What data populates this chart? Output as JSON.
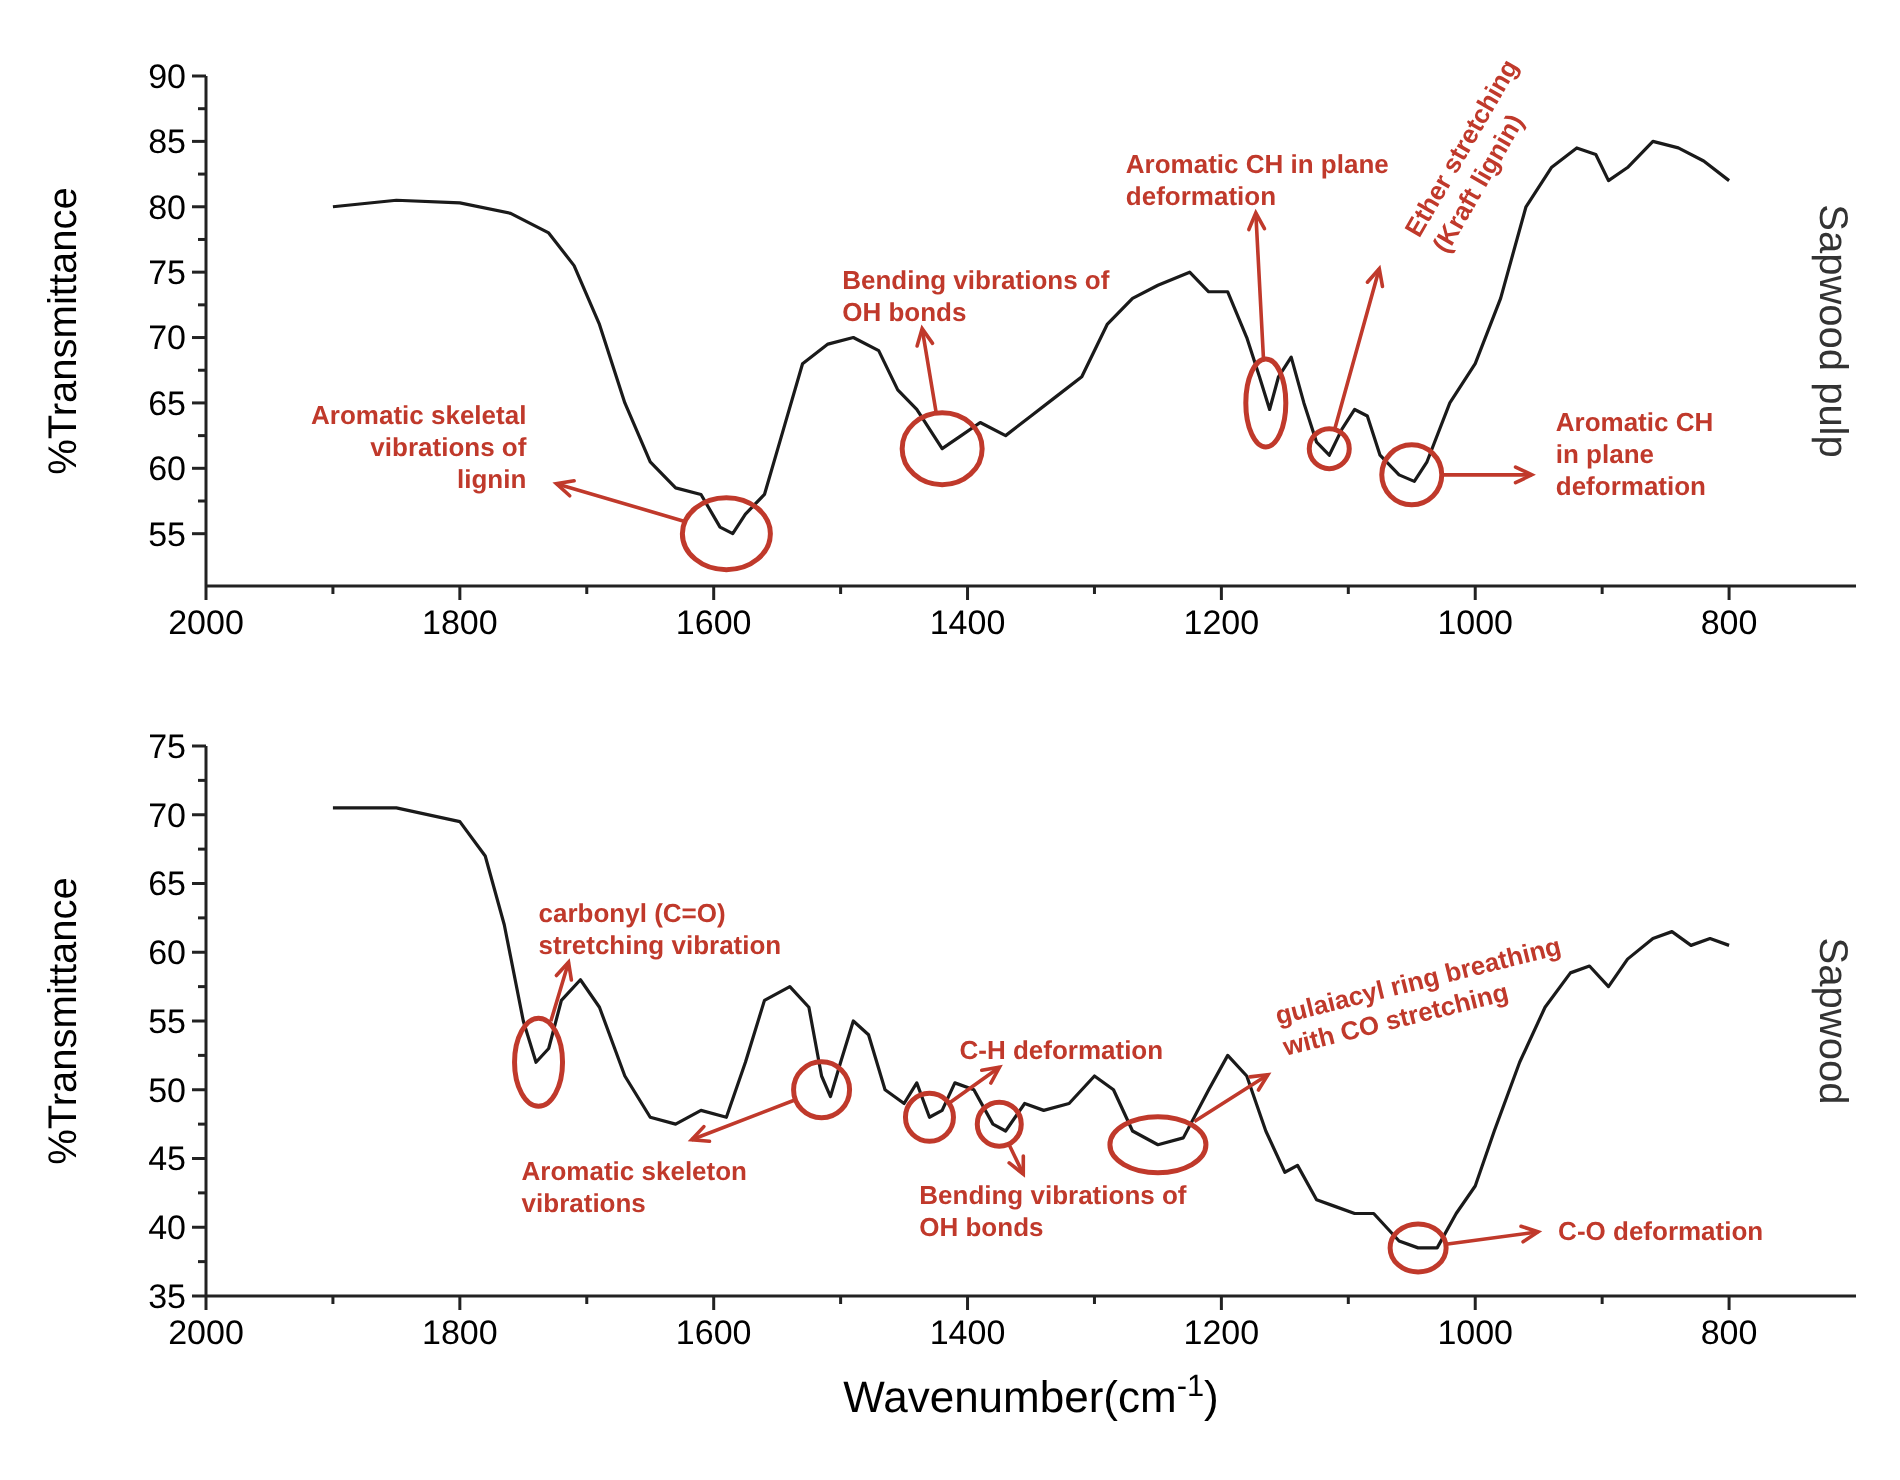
{
  "chart_data": [
    {
      "type": "line",
      "title": "Sapwood pulp",
      "ylabel": "%Transmittance",
      "xlim": [
        2000,
        700
      ],
      "ylim": [
        51,
        90
      ],
      "xticks": [
        2000,
        {
          "value": 1900,
          "label": null
        },
        1800,
        {
          "value": 1700,
          "label": null
        },
        1600,
        {
          "value": 1500,
          "label": null
        },
        1400,
        {
          "value": 1300,
          "label": null
        },
        1200,
        {
          "value": 1100,
          "label": null
        },
        1000,
        {
          "value": 900,
          "label": null
        },
        800
      ],
      "yticks": [
        55,
        {
          "value": 57.5,
          "label": null
        },
        60,
        {
          "value": 62.5,
          "label": null
        },
        65,
        {
          "value": 67.5,
          "label": null
        },
        70,
        {
          "value": 72.5,
          "label": null
        },
        75,
        {
          "value": 77.5,
          "label": null
        },
        80,
        {
          "value": 82.5,
          "label": null
        },
        85,
        {
          "value": 87.5,
          "label": null
        },
        90
      ],
      "grid": false,
      "marker": "none",
      "line_style": "solid",
      "series": [
        {
          "color": "#1a1a1a",
          "x": [
            1900,
            1850,
            1800,
            1760,
            1730,
            1710,
            1690,
            1670,
            1650,
            1630,
            1610,
            1595,
            1585,
            1575,
            1560,
            1545,
            1530,
            1510,
            1490,
            1470,
            1455,
            1440,
            1420,
            1405,
            1390,
            1370,
            1350,
            1330,
            1310,
            1290,
            1270,
            1250,
            1225,
            1210,
            1195,
            1180,
            1170,
            1162,
            1155,
            1145,
            1135,
            1125,
            1115,
            1105,
            1095,
            1085,
            1075,
            1060,
            1048,
            1038,
            1020,
            1000,
            980,
            960,
            940,
            920,
            905,
            895,
            880,
            860,
            840,
            820,
            800
          ],
          "values": [
            80,
            80.5,
            80.3,
            79.5,
            78,
            75.5,
            71,
            65,
            60.5,
            58.5,
            58,
            55.5,
            55,
            56.5,
            58,
            63,
            68,
            69.5,
            70,
            69,
            66,
            64.5,
            61.5,
            62.5,
            63.5,
            62.5,
            64,
            65.5,
            67,
            71,
            73,
            74,
            75,
            73.5,
            73.5,
            70,
            67,
            64.5,
            67,
            68.5,
            65,
            62,
            61,
            63,
            64.5,
            64,
            61,
            59.5,
            59,
            60.5,
            65,
            68,
            73,
            80,
            83,
            84.5,
            84,
            82,
            83,
            85,
            84.5,
            83.5,
            82
          ]
        }
      ],
      "annotations": [
        {
          "text": "Aromatic skeletal vibrations of lignin",
          "x": 1590,
          "y": 55
        },
        {
          "text": "Bending vibrations of OH bonds",
          "x": 1420,
          "y": 61.5
        },
        {
          "text": "Aromatic CH in plane deformation",
          "x": 1165,
          "y": 65
        },
        {
          "text": "Ether stretching (Kraft lignin)",
          "x": 1115,
          "y": 61.5
        },
        {
          "text": "Aromatic CH in plane deformation",
          "x": 1050,
          "y": 59.5
        }
      ]
    },
    {
      "type": "line",
      "title": "Sapwood",
      "xlabel": "Wavenumber(cm$^{-1}$)",
      "ylabel": "%Transmittance",
      "xlim": [
        2000,
        700
      ],
      "ylim": [
        35,
        75
      ],
      "xticks": [
        2000,
        {
          "value": 1900,
          "label": null
        },
        1800,
        {
          "value": 1700,
          "label": null
        },
        1600,
        {
          "value": 1500,
          "label": null
        },
        1400,
        {
          "value": 1300,
          "label": null
        },
        1200,
        {
          "value": 1100,
          "label": null
        },
        1000,
        {
          "value": 900,
          "label": null
        },
        800
      ],
      "yticks": [
        35,
        {
          "value": 37.5,
          "label": null
        },
        40,
        {
          "value": 42.5,
          "label": null
        },
        45,
        {
          "value": 47.5,
          "label": null
        },
        50,
        {
          "value": 52.5,
          "label": null
        },
        55,
        {
          "value": 57.5,
          "label": null
        },
        60,
        {
          "value": 62.5,
          "label": null
        },
        65,
        {
          "value": 67.5,
          "label": null
        },
        70,
        {
          "value": 72.5,
          "label": null
        },
        75
      ],
      "grid": false,
      "marker": "none",
      "line_style": "solid",
      "series": [
        {
          "color": "#1a1a1a",
          "x": [
            1900,
            1850,
            1800,
            1780,
            1765,
            1750,
            1740,
            1730,
            1720,
            1705,
            1690,
            1670,
            1650,
            1630,
            1610,
            1590,
            1575,
            1560,
            1540,
            1525,
            1515,
            1508,
            1500,
            1490,
            1478,
            1465,
            1450,
            1440,
            1430,
            1420,
            1410,
            1395,
            1380,
            1370,
            1355,
            1340,
            1320,
            1300,
            1285,
            1270,
            1250,
            1230,
            1210,
            1195,
            1180,
            1165,
            1150,
            1140,
            1125,
            1110,
            1095,
            1080,
            1060,
            1045,
            1030,
            1015,
            1000,
            985,
            965,
            945,
            925,
            910,
            895,
            880,
            860,
            845,
            830,
            815,
            800
          ],
          "values": [
            70.5,
            70.5,
            69.5,
            67,
            62,
            55,
            52,
            53,
            56.5,
            58,
            56,
            51,
            48,
            47.5,
            48.5,
            48,
            52,
            56.5,
            57.5,
            56,
            51,
            49.5,
            52,
            55,
            54,
            50,
            49,
            50.5,
            48,
            48.5,
            50.5,
            50,
            47.5,
            47,
            49,
            48.5,
            49,
            51,
            50,
            47,
            46,
            46.5,
            50,
            52.5,
            51,
            47,
            44,
            44.5,
            42,
            41.5,
            41,
            41,
            39,
            38.5,
            38.5,
            41,
            43,
            47,
            52,
            56,
            58.5,
            59,
            57.5,
            59.5,
            61,
            61.5,
            60.5,
            61,
            60.5
          ]
        }
      ],
      "annotations": [
        {
          "text": "carbonyl (C=O) stretching vibration",
          "x": 1738,
          "y": 52
        },
        {
          "text": "Aromatic skeleton vibrations",
          "x": 1515,
          "y": 50
        },
        {
          "text": "C-H deformation",
          "x": 1430,
          "y": 48
        },
        {
          "text": "Bending vibrations of OH bonds",
          "x": 1375,
          "y": 47.5
        },
        {
          "text": "gulaiacyl ring breathing with CO stretching",
          "x": 1250,
          "y": 46
        },
        {
          "text": "C-O deformation",
          "x": 1045,
          "y": 38.5
        }
      ]
    }
  ]
}
